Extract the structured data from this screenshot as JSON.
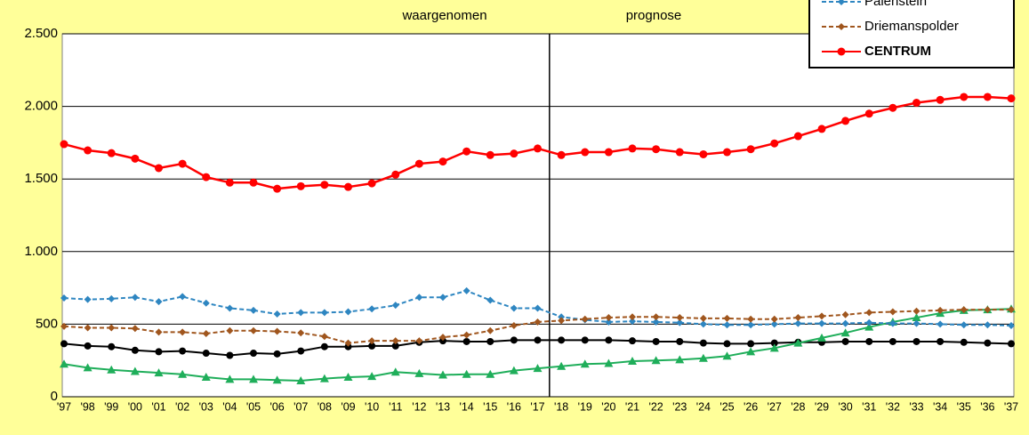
{
  "chart_data": {
    "type": "line",
    "annotations": [
      "waargenomen",
      "prognose"
    ],
    "categories": [
      "'97",
      "'98",
      "'99",
      "'00",
      "'01",
      "'02",
      "'03",
      "'04",
      "'05",
      "'06",
      "'07",
      "'08",
      "'09",
      "'10",
      "'11",
      "'12",
      "'13",
      "'14",
      "'15",
      "'16",
      "'17",
      "'18",
      "'19",
      "'20",
      "'21",
      "'22",
      "'23",
      "'24",
      "'25",
      "'26",
      "'27",
      "'28",
      "'29",
      "'30",
      "'31",
      "'32",
      "'33",
      "'34",
      "'35",
      "'36",
      "'37"
    ],
    "ylim": [
      0,
      2500
    ],
    "yticks": [
      0,
      500,
      {
        "value": 1000,
        "label": "1.000"
      },
      {
        "value": 1500,
        "label": "1.500"
      },
      {
        "value": 2000,
        "label": "2.000"
      },
      {
        "value": 2500,
        "label": "2.500"
      }
    ],
    "grid": true,
    "legend": "upper right",
    "series": [
      {
        "color": "#000000",
        "marker": "circle",
        "dash": false,
        "values": [
          365,
          350,
          345,
          320,
          310,
          315,
          300,
          285,
          300,
          295,
          315,
          345,
          345,
          350,
          350,
          375,
          385,
          380,
          380,
          390,
          390,
          390,
          390,
          390,
          385,
          380,
          380,
          370,
          365,
          365,
          370,
          375,
          375,
          380,
          380,
          380,
          380,
          380,
          375,
          370,
          365
        ]
      },
      {
        "color": "#1fae5a",
        "marker": "triangle",
        "dash": false,
        "values": [
          225,
          200,
          185,
          175,
          165,
          155,
          135,
          120,
          120,
          115,
          110,
          125,
          135,
          140,
          170,
          160,
          150,
          155,
          155,
          180,
          195,
          210,
          225,
          230,
          245,
          250,
          255,
          265,
          280,
          310,
          335,
          370,
          405,
          440,
          480,
          515,
          545,
          575,
          595,
          600,
          605
        ]
      },
      {
        "name": "Palenstein",
        "color": "#2e86c1",
        "marker": "diamond",
        "dash": true,
        "values": [
          680,
          670,
          675,
          685,
          655,
          690,
          645,
          610,
          595,
          570,
          580,
          580,
          585,
          605,
          630,
          685,
          685,
          730,
          665,
          610,
          610,
          550,
          530,
          515,
          520,
          515,
          510,
          500,
          495,
          495,
          500,
          505,
          505,
          505,
          510,
          505,
          505,
          500,
          495,
          495,
          490
        ]
      },
      {
        "name": "Driemanspolder",
        "color": "#a0561e",
        "marker": "diamond",
        "dash": true,
        "values": [
          485,
          475,
          475,
          470,
          445,
          445,
          435,
          455,
          455,
          450,
          440,
          415,
          370,
          385,
          385,
          385,
          410,
          425,
          455,
          490,
          515,
          525,
          535,
          545,
          550,
          550,
          545,
          540,
          540,
          535,
          535,
          545,
          555,
          565,
          580,
          585,
          590,
          595,
          600,
          600,
          600
        ]
      },
      {
        "name": "CENTRUM",
        "color": "#ff0000",
        "marker": "circle",
        "dash": false,
        "bold": true,
        "values": [
          1740,
          1697,
          1678,
          1640,
          1575,
          1605,
          1513,
          1475,
          1475,
          1433,
          1450,
          1460,
          1445,
          1470,
          1530,
          1605,
          1620,
          1690,
          1665,
          1675,
          1710,
          1665,
          1685,
          1685,
          1710,
          1705,
          1685,
          1670,
          1685,
          1705,
          1745,
          1795,
          1845,
          1900,
          1950,
          1990,
          2025,
          2045,
          2065,
          2065,
          2055
        ]
      }
    ]
  }
}
